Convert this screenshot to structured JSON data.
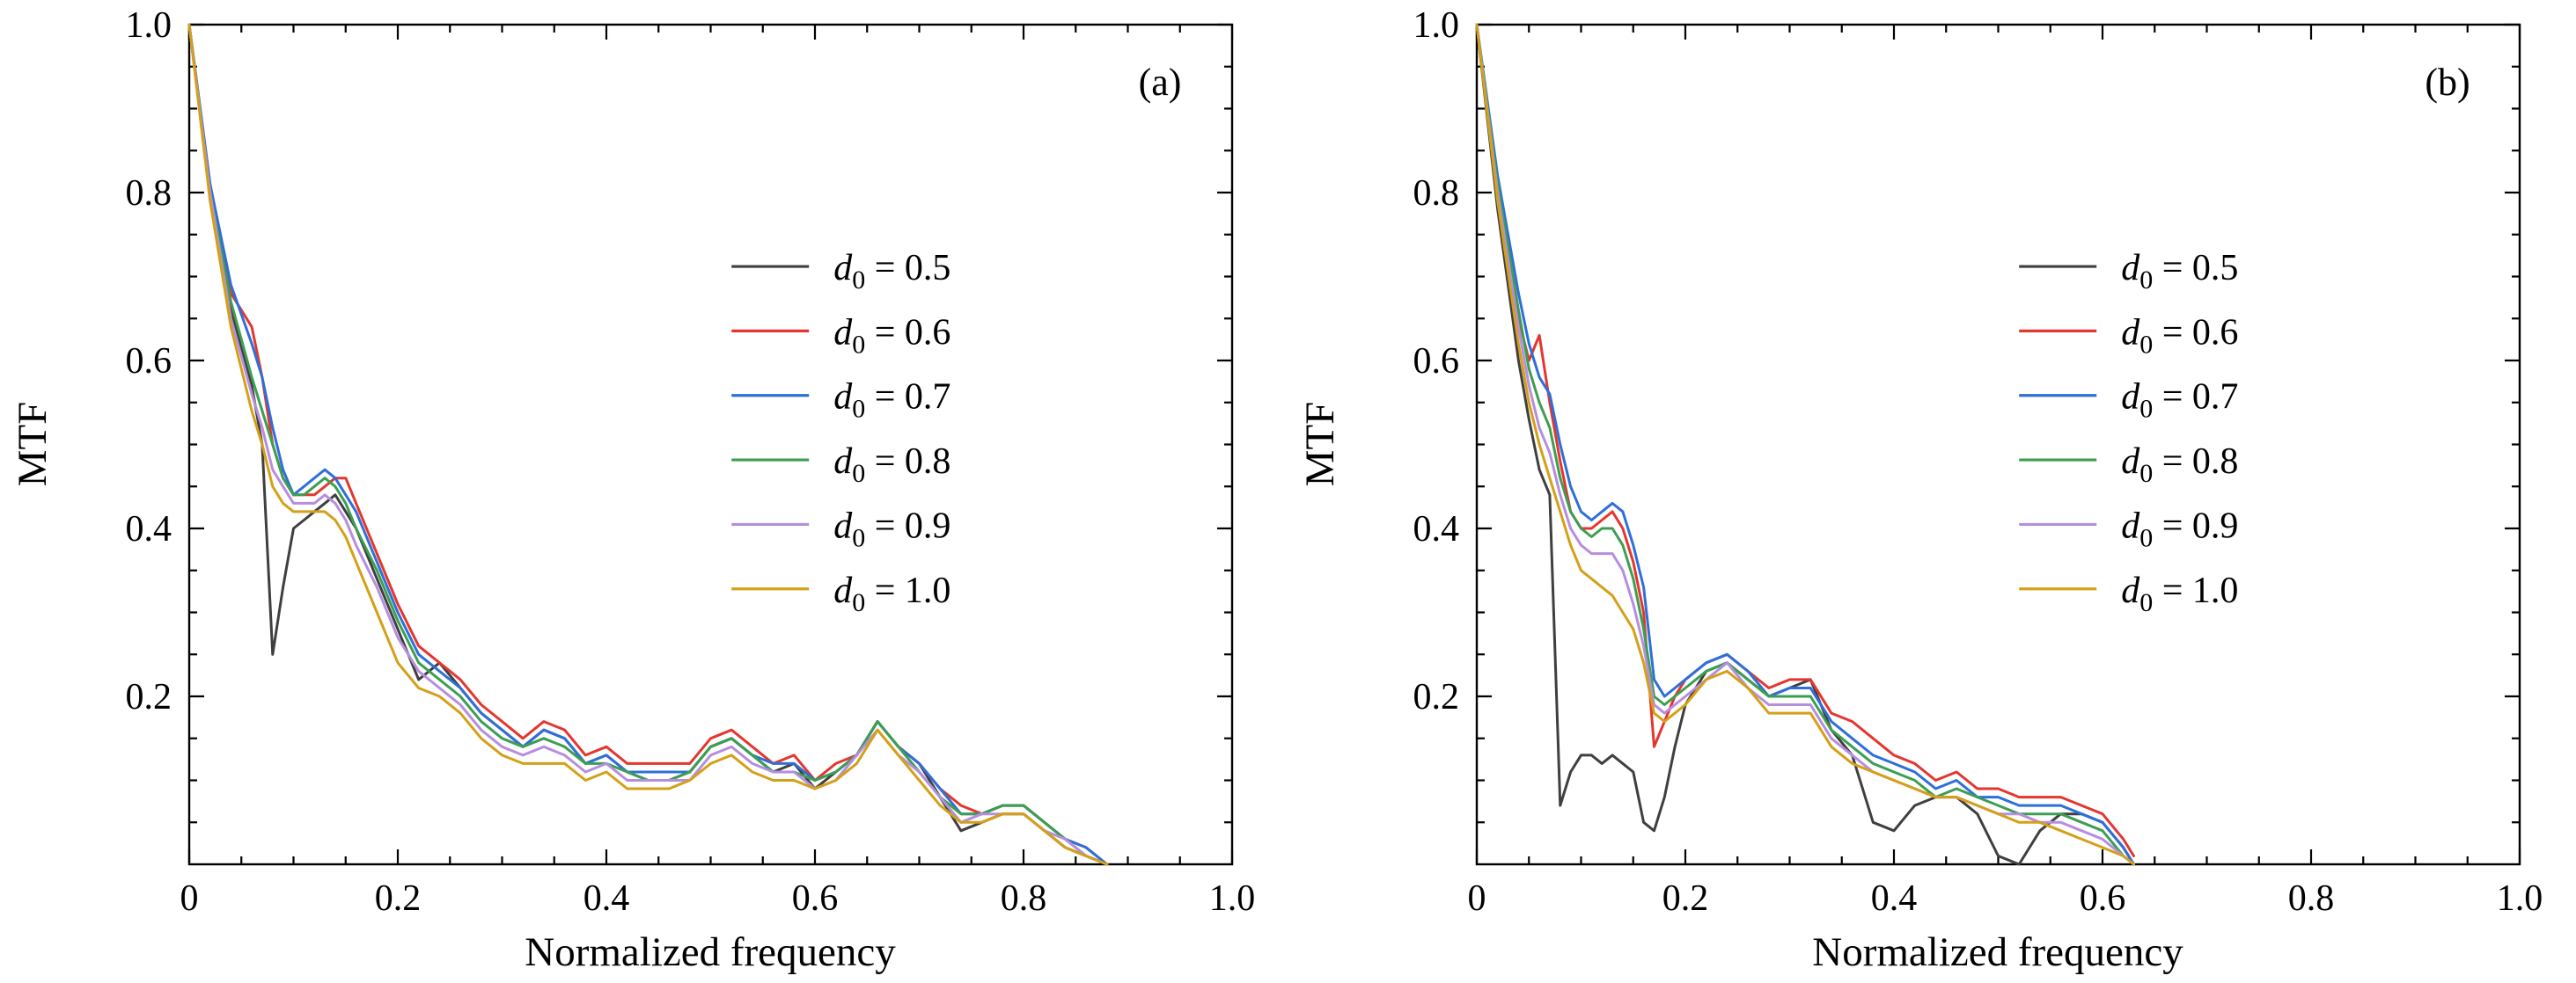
{
  "figure": {
    "background": "#ffffff",
    "axis_color": "#000000"
  },
  "axes": {
    "xlabel": "Normalized frequency",
    "ylabel": "MTF",
    "xlim": [
      0,
      1.0
    ],
    "ylim": [
      0,
      1.0
    ],
    "x_ticks": [
      0,
      0.2,
      0.4,
      0.6,
      0.8,
      1.0
    ],
    "x_tick_labels": [
      "0",
      "0.2",
      "0.4",
      "0.6",
      "0.8",
      "1.0"
    ],
    "y_ticks": [
      0.2,
      0.4,
      0.6,
      0.8,
      1.0
    ],
    "y_tick_labels": [
      "0.2",
      "0.4",
      "0.6",
      "0.8",
      "1.0"
    ],
    "minor_tick_step": 0.05,
    "grid": false,
    "legend": {
      "position": "center-right-inside",
      "frame": false,
      "var_symbol": "d",
      "var_subscript": "0",
      "equals": " = "
    }
  },
  "chart_data": [
    {
      "type": "line",
      "panel_label": "(a)",
      "xlabel": "Normalized frequency",
      "ylabel": "MTF",
      "xlim": [
        0,
        1.0
      ],
      "ylim": [
        0,
        1.0
      ],
      "x": [
        0,
        0.02,
        0.04,
        0.06,
        0.07,
        0.08,
        0.09,
        0.1,
        0.11,
        0.12,
        0.13,
        0.14,
        0.15,
        0.16,
        0.18,
        0.2,
        0.22,
        0.24,
        0.26,
        0.28,
        0.3,
        0.32,
        0.34,
        0.36,
        0.38,
        0.4,
        0.42,
        0.44,
        0.46,
        0.48,
        0.5,
        0.52,
        0.54,
        0.56,
        0.58,
        0.6,
        0.62,
        0.64,
        0.66,
        0.68,
        0.7,
        0.72,
        0.74,
        0.76,
        0.78,
        0.8,
        0.82,
        0.84,
        0.86,
        0.88
      ],
      "series": [
        {
          "name": "d0 = 0.5",
          "value": "0.5",
          "color": "#3f3f3f",
          "y": [
            1.0,
            0.8,
            0.66,
            0.57,
            0.5,
            0.25,
            0.33,
            0.4,
            0.41,
            0.42,
            0.43,
            0.44,
            0.42,
            0.4,
            0.34,
            0.28,
            0.22,
            0.24,
            0.21,
            0.18,
            0.16,
            0.14,
            0.16,
            0.15,
            0.12,
            0.13,
            0.11,
            0.1,
            0.1,
            0.11,
            0.14,
            0.15,
            0.13,
            0.11,
            0.12,
            0.09,
            0.11,
            0.13,
            0.17,
            0.14,
            0.12,
            0.08,
            0.04,
            0.05,
            0.06,
            0.06,
            0.04,
            0.02,
            0.01,
            0.0
          ]
        },
        {
          "name": "d0 = 0.6",
          "value": "0.6",
          "color": "#e5362e",
          "y": [
            1.0,
            0.81,
            0.68,
            0.64,
            0.58,
            0.5,
            0.46,
            0.44,
            0.44,
            0.44,
            0.45,
            0.46,
            0.46,
            0.43,
            0.37,
            0.31,
            0.26,
            0.24,
            0.22,
            0.19,
            0.17,
            0.15,
            0.17,
            0.16,
            0.13,
            0.14,
            0.12,
            0.12,
            0.12,
            0.12,
            0.15,
            0.16,
            0.14,
            0.12,
            0.13,
            0.1,
            0.12,
            0.13,
            0.17,
            0.14,
            0.12,
            0.09,
            0.07,
            0.06,
            0.07,
            0.07,
            0.05,
            0.03,
            0.02,
            0.0
          ]
        },
        {
          "name": "d0 = 0.7",
          "value": "0.7",
          "color": "#2e6fd9",
          "y": [
            1.0,
            0.81,
            0.69,
            0.62,
            0.58,
            0.52,
            0.47,
            0.44,
            0.45,
            0.46,
            0.47,
            0.46,
            0.44,
            0.42,
            0.36,
            0.3,
            0.25,
            0.23,
            0.21,
            0.18,
            0.16,
            0.14,
            0.16,
            0.15,
            0.12,
            0.13,
            0.11,
            0.11,
            0.11,
            0.11,
            0.14,
            0.15,
            0.13,
            0.12,
            0.12,
            0.1,
            0.11,
            0.13,
            0.17,
            0.14,
            0.12,
            0.09,
            0.06,
            0.06,
            0.07,
            0.07,
            0.05,
            0.03,
            0.02,
            0.0
          ]
        },
        {
          "name": "d0 = 0.8",
          "value": "0.8",
          "color": "#3d9e51",
          "y": [
            1.0,
            0.8,
            0.67,
            0.58,
            0.54,
            0.5,
            0.46,
            0.44,
            0.44,
            0.45,
            0.46,
            0.45,
            0.43,
            0.4,
            0.35,
            0.29,
            0.24,
            0.22,
            0.2,
            0.17,
            0.15,
            0.14,
            0.15,
            0.14,
            0.12,
            0.12,
            0.11,
            0.1,
            0.1,
            0.11,
            0.14,
            0.15,
            0.13,
            0.11,
            0.11,
            0.1,
            0.11,
            0.13,
            0.17,
            0.14,
            0.11,
            0.08,
            0.06,
            0.06,
            0.07,
            0.07,
            0.05,
            0.03,
            0.01,
            0.0
          ]
        },
        {
          "name": "d0 = 0.9",
          "value": "0.9",
          "color": "#b68ee0",
          "y": [
            1.0,
            0.8,
            0.65,
            0.56,
            0.52,
            0.47,
            0.45,
            0.43,
            0.43,
            0.43,
            0.44,
            0.43,
            0.41,
            0.38,
            0.33,
            0.27,
            0.23,
            0.21,
            0.19,
            0.16,
            0.14,
            0.13,
            0.14,
            0.13,
            0.11,
            0.12,
            0.1,
            0.1,
            0.1,
            0.1,
            0.13,
            0.14,
            0.12,
            0.11,
            0.11,
            0.09,
            0.1,
            0.13,
            0.16,
            0.13,
            0.11,
            0.08,
            0.05,
            0.06,
            0.06,
            0.06,
            0.04,
            0.03,
            0.01,
            0.0
          ]
        },
        {
          "name": "d0 = 1.0",
          "value": "1.0",
          "color": "#d4a017",
          "y": [
            1.0,
            0.79,
            0.64,
            0.54,
            0.5,
            0.45,
            0.43,
            0.42,
            0.42,
            0.42,
            0.42,
            0.41,
            0.39,
            0.36,
            0.3,
            0.24,
            0.21,
            0.2,
            0.18,
            0.15,
            0.13,
            0.12,
            0.12,
            0.12,
            0.1,
            0.11,
            0.09,
            0.09,
            0.09,
            0.1,
            0.12,
            0.13,
            0.11,
            0.1,
            0.1,
            0.09,
            0.1,
            0.12,
            0.16,
            0.13,
            0.1,
            0.07,
            0.05,
            0.05,
            0.06,
            0.06,
            0.04,
            0.02,
            0.01,
            0.0
          ]
        }
      ]
    },
    {
      "type": "line",
      "panel_label": "(b)",
      "xlabel": "Normalized frequency",
      "ylabel": "MTF",
      "xlim": [
        0,
        1.0
      ],
      "ylim": [
        0,
        1.0
      ],
      "x": [
        0,
        0.02,
        0.04,
        0.05,
        0.06,
        0.07,
        0.08,
        0.09,
        0.1,
        0.11,
        0.12,
        0.13,
        0.14,
        0.15,
        0.16,
        0.17,
        0.18,
        0.19,
        0.2,
        0.22,
        0.24,
        0.26,
        0.28,
        0.3,
        0.32,
        0.34,
        0.36,
        0.38,
        0.4,
        0.42,
        0.44,
        0.46,
        0.48,
        0.5,
        0.52,
        0.54,
        0.56,
        0.58,
        0.6,
        0.62,
        0.63
      ],
      "series": [
        {
          "name": "d0 = 0.5",
          "value": "0.5",
          "color": "#3f3f3f",
          "y": [
            1.0,
            0.78,
            0.6,
            0.53,
            0.47,
            0.44,
            0.07,
            0.11,
            0.13,
            0.13,
            0.12,
            0.13,
            0.12,
            0.11,
            0.05,
            0.04,
            0.08,
            0.14,
            0.19,
            0.23,
            0.24,
            0.22,
            0.2,
            0.21,
            0.22,
            0.16,
            0.13,
            0.05,
            0.04,
            0.07,
            0.08,
            0.08,
            0.06,
            0.01,
            0.0,
            0.04,
            0.06,
            0.06,
            0.05,
            0.02,
            0.0
          ]
        },
        {
          "name": "d0 = 0.6",
          "value": "0.6",
          "color": "#e5362e",
          "y": [
            1.0,
            0.8,
            0.65,
            0.6,
            0.63,
            0.55,
            0.48,
            0.42,
            0.4,
            0.4,
            0.41,
            0.42,
            0.4,
            0.36,
            0.3,
            0.14,
            0.17,
            0.2,
            0.22,
            0.24,
            0.25,
            0.23,
            0.21,
            0.22,
            0.22,
            0.18,
            0.17,
            0.15,
            0.13,
            0.12,
            0.1,
            0.11,
            0.09,
            0.09,
            0.08,
            0.08,
            0.08,
            0.07,
            0.06,
            0.03,
            0.01
          ]
        },
        {
          "name": "d0 = 0.7",
          "value": "0.7",
          "color": "#2e6fd9",
          "y": [
            1.0,
            0.82,
            0.68,
            0.62,
            0.58,
            0.56,
            0.5,
            0.45,
            0.42,
            0.41,
            0.42,
            0.43,
            0.42,
            0.38,
            0.33,
            0.22,
            0.2,
            0.21,
            0.22,
            0.24,
            0.25,
            0.23,
            0.2,
            0.21,
            0.21,
            0.17,
            0.15,
            0.13,
            0.12,
            0.11,
            0.09,
            0.1,
            0.08,
            0.08,
            0.07,
            0.07,
            0.07,
            0.06,
            0.05,
            0.02,
            0.0
          ]
        },
        {
          "name": "d0 = 0.8",
          "value": "0.8",
          "color": "#3d9e51",
          "y": [
            1.0,
            0.81,
            0.66,
            0.59,
            0.55,
            0.52,
            0.46,
            0.42,
            0.4,
            0.39,
            0.4,
            0.4,
            0.38,
            0.34,
            0.28,
            0.2,
            0.19,
            0.2,
            0.21,
            0.23,
            0.24,
            0.22,
            0.2,
            0.2,
            0.2,
            0.16,
            0.14,
            0.12,
            0.11,
            0.1,
            0.08,
            0.09,
            0.08,
            0.07,
            0.06,
            0.06,
            0.06,
            0.05,
            0.04,
            0.01,
            0.0
          ]
        },
        {
          "name": "d0 = 0.9",
          "value": "0.9",
          "color": "#b68ee0",
          "y": [
            1.0,
            0.8,
            0.64,
            0.57,
            0.52,
            0.49,
            0.44,
            0.4,
            0.38,
            0.37,
            0.37,
            0.37,
            0.35,
            0.31,
            0.26,
            0.19,
            0.18,
            0.19,
            0.2,
            0.22,
            0.24,
            0.21,
            0.19,
            0.19,
            0.19,
            0.15,
            0.13,
            0.11,
            0.1,
            0.09,
            0.08,
            0.08,
            0.07,
            0.06,
            0.06,
            0.05,
            0.05,
            0.04,
            0.03,
            0.01,
            0.0
          ]
        },
        {
          "name": "d0 = 1.0",
          "value": "1.0",
          "color": "#d4a017",
          "y": [
            1.0,
            0.79,
            0.62,
            0.55,
            0.5,
            0.46,
            0.42,
            0.38,
            0.35,
            0.34,
            0.33,
            0.32,
            0.3,
            0.28,
            0.24,
            0.18,
            0.17,
            0.18,
            0.19,
            0.22,
            0.23,
            0.21,
            0.18,
            0.18,
            0.18,
            0.14,
            0.12,
            0.11,
            0.1,
            0.09,
            0.08,
            0.08,
            0.07,
            0.06,
            0.05,
            0.05,
            0.04,
            0.03,
            0.02,
            0.01,
            0.0
          ]
        }
      ]
    }
  ]
}
